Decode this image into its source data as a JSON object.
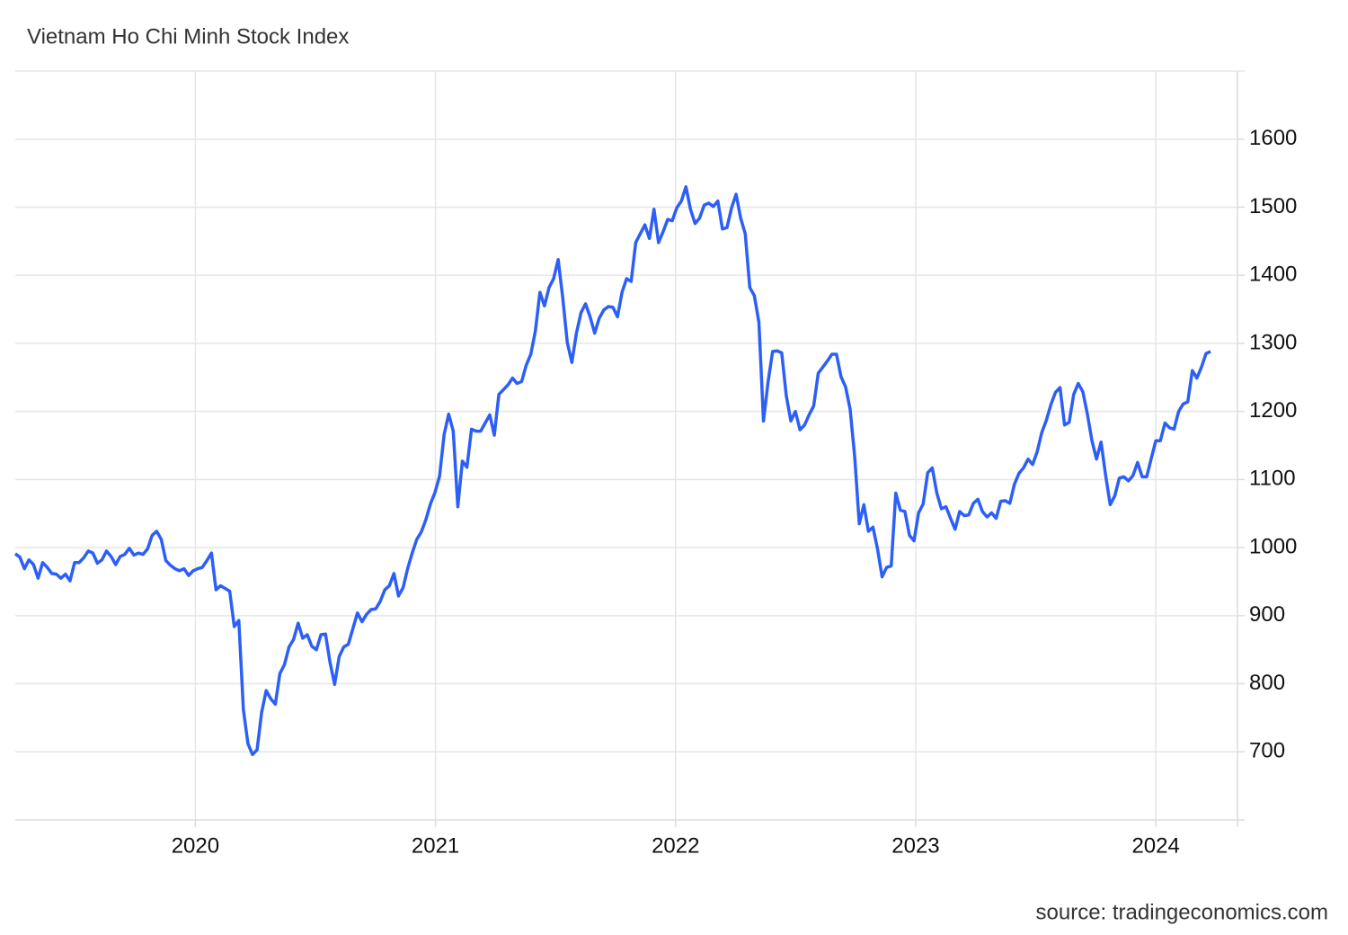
{
  "chart_data": {
    "type": "line",
    "title": "Vietnam Ho Chi Minh Stock Index",
    "source": "source: tradingeconomics.com",
    "color": "#2c5ff6",
    "grid": true,
    "xlim": [
      2019.25,
      2024.34
    ],
    "xticks": [
      2020,
      2021,
      2022,
      2023,
      2024
    ],
    "ylim": [
      600,
      1700
    ],
    "yticks": [
      700,
      800,
      900,
      1000,
      1100,
      1200,
      1300,
      1400,
      1500,
      1600
    ],
    "x": [
      2019.25,
      2019.269,
      2019.288,
      2019.307,
      2019.326,
      2019.345,
      2019.364,
      2019.383,
      2019.402,
      2019.421,
      2019.44,
      2019.459,
      2019.478,
      2019.497,
      2019.516,
      2019.535,
      2019.554,
      2019.573,
      2019.592,
      2019.611,
      2019.63,
      2019.649,
      2019.668,
      2019.687,
      2019.706,
      2019.725,
      2019.744,
      2019.763,
      2019.782,
      2019.801,
      2019.82,
      2019.839,
      2019.858,
      2019.877,
      2019.896,
      2019.915,
      2019.934,
      2019.953,
      2019.972,
      2019.991,
      2020.01,
      2020.029,
      2020.048,
      2020.067,
      2020.086,
      2020.105,
      2020.124,
      2020.143,
      2020.162,
      2020.181,
      2020.2,
      2020.219,
      2020.238,
      2020.257,
      2020.276,
      2020.295,
      2020.314,
      2020.333,
      2020.352,
      2020.371,
      2020.39,
      2020.409,
      2020.428,
      2020.447,
      2020.466,
      2020.485,
      2020.504,
      2020.523,
      2020.542,
      2020.561,
      2020.58,
      2020.599,
      2020.618,
      2020.637,
      2020.656,
      2020.675,
      2020.694,
      2020.713,
      2020.732,
      2020.751,
      2020.77,
      2020.789,
      2020.808,
      2020.827,
      2020.846,
      2020.865,
      2020.884,
      2020.903,
      2020.922,
      2020.941,
      2020.96,
      2020.979,
      2020.998,
      2021.017,
      2021.036,
      2021.055,
      2021.074,
      2021.093,
      2021.112,
      2021.131,
      2021.15,
      2021.169,
      2021.188,
      2021.207,
      2021.226,
      2021.245,
      2021.264,
      2021.283,
      2021.302,
      2021.321,
      2021.34,
      2021.359,
      2021.378,
      2021.397,
      2021.416,
      2021.435,
      2021.454,
      2021.473,
      2021.492,
      2021.511,
      2021.53,
      2021.549,
      2021.568,
      2021.587,
      2021.606,
      2021.625,
      2021.644,
      2021.663,
      2021.682,
      2021.701,
      2021.72,
      2021.739,
      2021.758,
      2021.777,
      2021.796,
      2021.815,
      2021.834,
      2021.853,
      2021.872,
      2021.891,
      2021.91,
      2021.929,
      2021.948,
      2021.967,
      2021.986,
      2022.005,
      2022.024,
      2022.043,
      2022.062,
      2022.081,
      2022.1,
      2022.119,
      2022.138,
      2022.157,
      2022.176,
      2022.195,
      2022.214,
      2022.233,
      2022.252,
      2022.271,
      2022.29,
      2022.309,
      2022.328,
      2022.347,
      2022.366,
      2022.385,
      2022.404,
      2022.423,
      2022.442,
      2022.461,
      2022.48,
      2022.499,
      2022.518,
      2022.537,
      2022.556,
      2022.575,
      2022.594,
      2022.613,
      2022.632,
      2022.651,
      2022.67,
      2022.689,
      2022.708,
      2022.727,
      2022.746,
      2022.765,
      2022.784,
      2022.803,
      2022.822,
      2022.841,
      2022.86,
      2022.879,
      2022.898,
      2022.917,
      2022.936,
      2022.955,
      2022.974,
      2022.993,
      2023.012,
      2023.031,
      2023.05,
      2023.069,
      2023.088,
      2023.107,
      2023.126,
      2023.145,
      2023.164,
      2023.183,
      2023.202,
      2023.221,
      2023.24,
      2023.259,
      2023.278,
      2023.297,
      2023.316,
      2023.335,
      2023.354,
      2023.373,
      2023.392,
      2023.411,
      2023.43,
      2023.449,
      2023.468,
      2023.487,
      2023.506,
      2023.525,
      2023.544,
      2023.563,
      2023.582,
      2023.601,
      2023.62,
      2023.639,
      2023.658,
      2023.677,
      2023.696,
      2023.715,
      2023.734,
      2023.753,
      2023.772,
      2023.791,
      2023.81,
      2023.829,
      2023.848,
      2023.867,
      2023.886,
      2023.905,
      2023.924,
      2023.943,
      2023.962,
      2023.981,
      2024,
      2024.019,
      2024.038,
      2024.057,
      2024.076,
      2024.095,
      2024.114,
      2024.133,
      2024.152,
      2024.171,
      2024.19,
      2024.209,
      2024.228
    ],
    "values": [
      991,
      986,
      969,
      982,
      975,
      955,
      978,
      971,
      962,
      961,
      955,
      961,
      951,
      978,
      978,
      985,
      995,
      992,
      977,
      982,
      995,
      987,
      975,
      987,
      990,
      999,
      989,
      992,
      990,
      998,
      1018,
      1024,
      1012,
      981,
      974,
      969,
      966,
      969,
      959,
      966,
      969,
      971,
      981,
      992,
      938,
      944,
      940,
      936,
      884,
      893,
      762,
      712,
      696,
      703,
      758,
      790,
      778,
      770,
      815,
      828,
      854,
      865,
      889,
      867,
      872,
      855,
      850,
      872,
      873,
      831,
      799,
      840,
      854,
      858,
      881,
      904,
      891,
      902,
      909,
      910,
      921,
      938,
      944,
      962,
      929,
      941,
      969,
      992,
      1012,
      1023,
      1041,
      1064,
      1081,
      1105,
      1166,
      1196,
      1171,
      1060,
      1127,
      1118,
      1174,
      1171,
      1171,
      1183,
      1195,
      1165,
      1225,
      1232,
      1239,
      1249,
      1241,
      1244,
      1268,
      1284,
      1318,
      1375,
      1355,
      1382,
      1395,
      1423,
      1367,
      1301,
      1272,
      1315,
      1345,
      1358,
      1339,
      1315,
      1337,
      1349,
      1354,
      1353,
      1339,
      1375,
      1395,
      1391,
      1448,
      1461,
      1474,
      1454,
      1497,
      1448,
      1464,
      1482,
      1480,
      1499,
      1509,
      1530,
      1497,
      1476,
      1484,
      1503,
      1506,
      1501,
      1509,
      1468,
      1470,
      1499,
      1519,
      1484,
      1461,
      1382,
      1370,
      1331,
      1186,
      1243,
      1288,
      1289,
      1286,
      1223,
      1186,
      1200,
      1173,
      1180,
      1195,
      1208,
      1256,
      1265,
      1274,
      1284,
      1284,
      1251,
      1236,
      1203,
      1133,
      1035,
      1063,
      1024,
      1030,
      998,
      957,
      971,
      973,
      1080,
      1055,
      1053,
      1018,
      1010,
      1051,
      1064,
      1110,
      1117,
      1080,
      1057,
      1060,
      1043,
      1027,
      1053,
      1047,
      1048,
      1065,
      1071,
      1053,
      1045,
      1051,
      1043,
      1068,
      1069,
      1065,
      1093,
      1109,
      1117,
      1130,
      1122,
      1141,
      1169,
      1187,
      1210,
      1228,
      1235,
      1180,
      1184,
      1225,
      1241,
      1229,
      1196,
      1157,
      1130,
      1155,
      1106,
      1063,
      1076,
      1102,
      1104,
      1098,
      1106,
      1125,
      1104,
      1104,
      1131,
      1157,
      1157,
      1183,
      1176,
      1174,
      1200,
      1211,
      1214,
      1260,
      1249,
      1265,
      1285,
      1288
    ]
  }
}
